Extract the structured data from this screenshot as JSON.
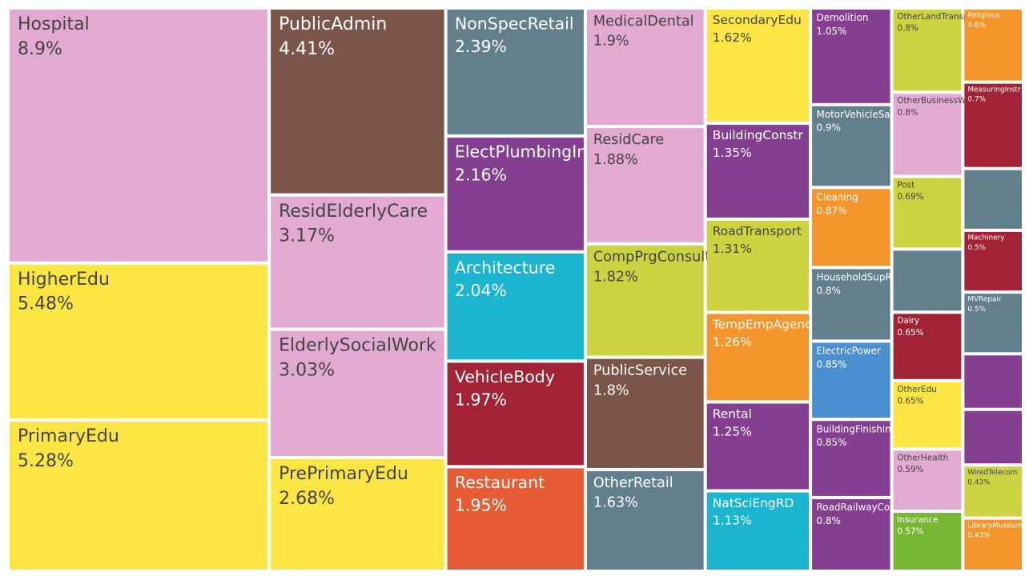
{
  "chart_data": {
    "type": "treemap",
    "categories": [
      "Hospital",
      "HigherEdu",
      "PrimaryEdu",
      "PublicAdmin",
      "ResidElderlyCare",
      "ElderlySocialWork",
      "PrePrimaryEdu",
      "NonSpecRetail",
      "ElectPlumbingInstall",
      "Architecture",
      "VehicleBody",
      "Restaurant",
      "MedicalDental",
      "ResidCare",
      "CompPrgConsult",
      "PublicService",
      "OtherRetail",
      "SecondaryEdu",
      "BuildingConstr",
      "RoadTransport",
      "TempEmpAgency",
      "Rental",
      "NatSciEngRD",
      "Demolition",
      "MotorVehicleSales",
      "Cleaning",
      "HouseholdSupRetail",
      "ElectricPower",
      "BuildingFinishing",
      "RoadRailwayConstr",
      "OtherLandTransport",
      "OtherBusinessWork",
      "Post",
      null,
      "Dairy",
      "OtherEdu",
      "OtherHealth",
      "Insurance",
      "Religious",
      "MeasuringInstr",
      null,
      "Machinery",
      "MVRepair",
      null,
      null,
      "WiredTelecom",
      "LibraryMuseum"
    ],
    "values": [
      8.9,
      5.48,
      5.28,
      4.41,
      3.17,
      3.03,
      2.68,
      2.39,
      2.16,
      2.04,
      1.97,
      1.95,
      1.9,
      1.88,
      1.82,
      1.8,
      1.63,
      1.62,
      1.35,
      1.31,
      1.26,
      1.25,
      1.13,
      1.05,
      0.9,
      0.87,
      0.8,
      0.85,
      0.85,
      0.8,
      0.8,
      0.8,
      0.69,
      0.6,
      0.65,
      0.65,
      0.59,
      0.57,
      0.6,
      0.7,
      0.5,
      0.5,
      0.5,
      0.45,
      0.45,
      0.43,
      0.43
    ],
    "value_labels": [
      "8.9%",
      "5.48%",
      "5.28%",
      "4.41%",
      "3.17%",
      "3.03%",
      "2.68%",
      "2.39%",
      "2.16%",
      "2.04%",
      "1.97%",
      "1.95%",
      "1.9%",
      "1.88%",
      "1.82%",
      "1.8%",
      "1.63%",
      "1.62%",
      "1.35%",
      "1.31%",
      "1.26%",
      "1.25%",
      "1.13%",
      "1.05%",
      "0.9%",
      "0.87%",
      "0.8%",
      "0.85%",
      "0.85%",
      "0.8%",
      "0.8%",
      "0.8%",
      "0.69%",
      null,
      "0.65%",
      "0.65%",
      "0.59%",
      "0.57%",
      "0.6%",
      "0.7%",
      null,
      "0.5%",
      "0.5%",
      null,
      null,
      "0.43%",
      "0.43%"
    ],
    "colors": [
      "#e2a9d1",
      "#fbe543",
      "#fbe543",
      "#7b5549",
      "#e2a9d1",
      "#e2a9d1",
      "#fbe543",
      "#627f8c",
      "#843f91",
      "#1cb5d0",
      "#a32336",
      "#e65c35",
      "#e2a9d1",
      "#e2a9d1",
      "#cbd440",
      "#7b5549",
      "#627f8c",
      "#fbe543",
      "#843f91",
      "#cbd440",
      "#f3952a",
      "#843f91",
      "#1cb5d0",
      "#843f91",
      "#627f8c",
      "#f3952a",
      "#627f8c",
      "#4a8fcf",
      "#843f91",
      "#843f91",
      "#cbd440",
      "#e2a9d1",
      "#cbd440",
      "#627f8c",
      "#a32336",
      "#fbe543",
      "#e2a9d1",
      "#77b832",
      "#f3952a",
      "#a32336",
      "#627f8c",
      "#a32336",
      "#627f8c",
      "#843f91",
      "#843f91",
      "#cbd440",
      "#f3952a"
    ]
  }
}
